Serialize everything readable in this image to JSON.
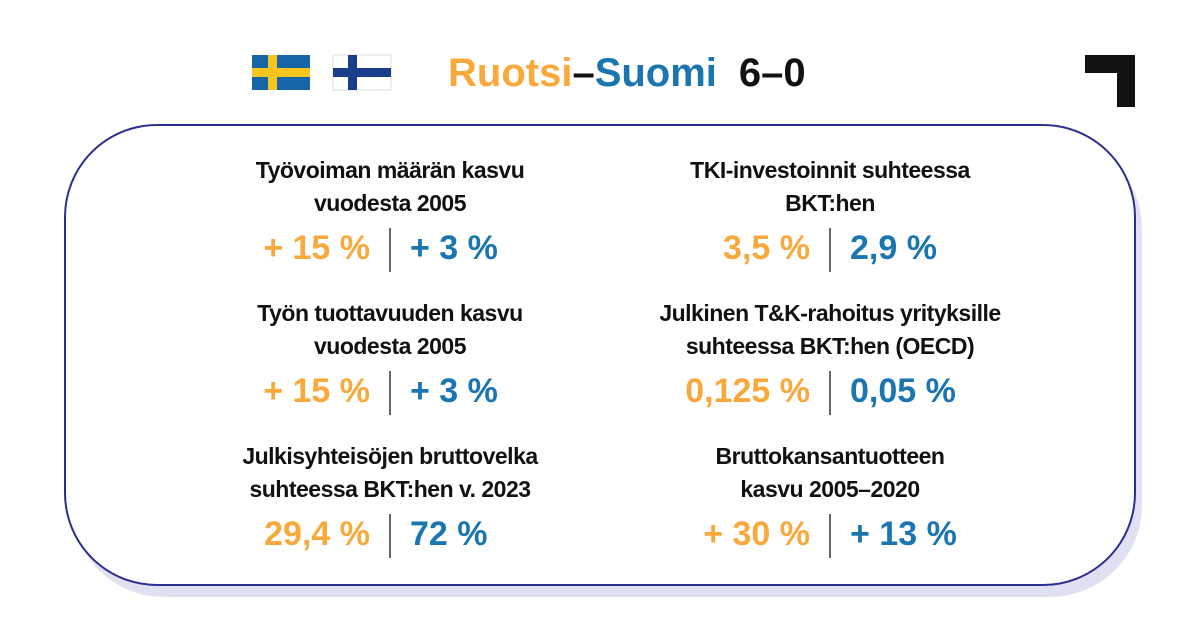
{
  "header": {
    "title_sweden": "Ruotsi",
    "title_dash": "–",
    "title_finland": "Suomi",
    "score": "6–0"
  },
  "metrics": [
    {
      "label": [
        "Työvoiman määrän kasvu",
        "vuodesta 2005"
      ],
      "sweden": "+ 15 %",
      "finland": "+ 3 %"
    },
    {
      "label": [
        "Työn tuottavuuden kasvu",
        "vuodesta 2005"
      ],
      "sweden": "+ 15 %",
      "finland": "+ 3 %"
    },
    {
      "label": [
        "Julkisyhteisöjen bruttovelka",
        "suhteessa BKT:hen v. 2023"
      ],
      "sweden": "29,4 %",
      "finland": "72 %"
    },
    {
      "label": [
        "TKI-investoinnit suhteessa",
        "BKT:hen"
      ],
      "sweden": "3,5 %",
      "finland": "2,9 %"
    },
    {
      "label": [
        "Julkinen T&K-rahoitus yrityksille",
        "suhteessa BKT:hen (OECD)"
      ],
      "sweden": "0,125 %",
      "finland": "0,05 %"
    },
    {
      "label": [
        "Bruttokansantuotteen",
        "kasvu 2005–2020"
      ],
      "sweden": "+ 30 %",
      "finland": "+ 13 %"
    }
  ]
}
